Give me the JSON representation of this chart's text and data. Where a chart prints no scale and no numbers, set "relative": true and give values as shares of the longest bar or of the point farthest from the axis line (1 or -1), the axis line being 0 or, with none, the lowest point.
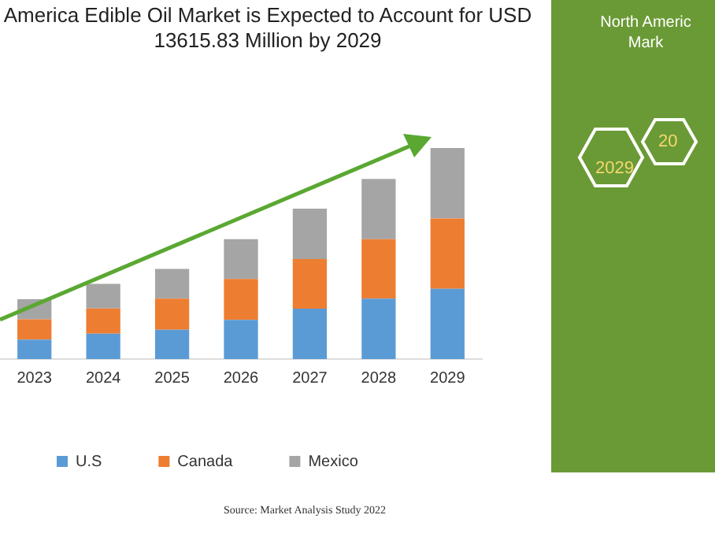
{
  "chart_data": {
    "type": "bar",
    "title": "America Edible Oil Market is Expected to Account for USD 13615.83 Million by 2029",
    "categories": [
      "2023",
      "2024",
      "2025",
      "2026",
      "2027",
      "2028",
      "2029"
    ],
    "stacked": true,
    "relative": true,
    "grid": false,
    "legend": "bottom",
    "series": [
      {
        "name": "U.S",
        "color": "#5b9bd5",
        "values": [
          0.092,
          0.12,
          0.139,
          0.186,
          0.239,
          0.286,
          0.333
        ]
      },
      {
        "name": "Canada",
        "color": "#ed7d31",
        "values": [
          0.096,
          0.12,
          0.147,
          0.194,
          0.235,
          0.282,
          0.333
        ]
      },
      {
        "name": "Mexico",
        "color": "#a5a5a5",
        "values": [
          0.096,
          0.116,
          0.141,
          0.188,
          0.239,
          0.286,
          0.334
        ]
      }
    ],
    "annotations": [
      "Source: Market Analysis Study 2022",
      "North Americ",
      "Mark",
      "2029",
      "20"
    ]
  }
}
